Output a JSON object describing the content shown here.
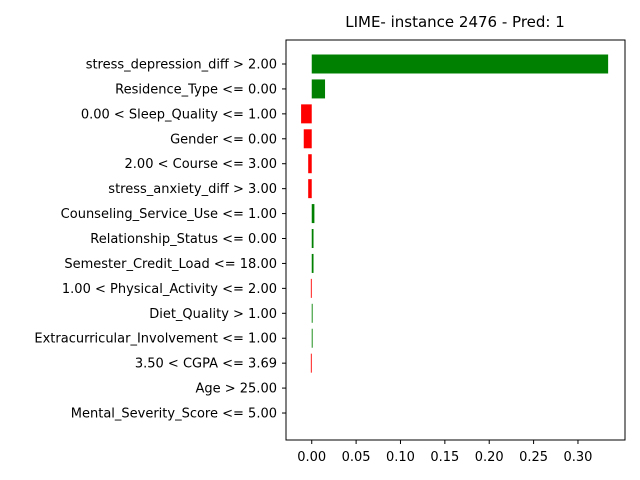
{
  "chart_data": {
    "type": "bar",
    "orientation": "horizontal",
    "title": "LIME- instance 2476 - Pred: 1",
    "xlabel": "",
    "ylabel": "",
    "xlim": [
      -0.029,
      0.353
    ],
    "xticks": [
      0.0,
      0.05,
      0.1,
      0.15,
      0.2,
      0.25,
      0.3
    ],
    "xtick_labels": [
      "0.00",
      "0.05",
      "0.10",
      "0.15",
      "0.20",
      "0.25",
      "0.30"
    ],
    "grid": false,
    "legend": "none",
    "positive_color": "#008000",
    "negative_color": "#ff0000",
    "categories": [
      "stress_depression_diff > 2.00",
      "Residence_Type <= 0.00",
      "0.00 < Sleep_Quality <= 1.00",
      "Gender <= 0.00",
      "2.00 < Course <= 3.00",
      "stress_anxiety_diff > 3.00",
      "Counseling_Service_Use <= 1.00",
      "Relationship_Status <= 0.00",
      "Semester_Credit_Load <= 18.00",
      "1.00 < Physical_Activity <= 2.00",
      "Diet_Quality > 1.00",
      "Extracurricular_Involvement <= 1.00",
      "3.50 < CGPA <= 3.69",
      "Age > 25.00",
      "Mental_Severity_Score <= 5.00"
    ],
    "values": [
      0.334,
      0.015,
      -0.012,
      -0.009,
      -0.004,
      -0.004,
      0.003,
      0.002,
      0.002,
      -0.001,
      0.001,
      0.001,
      -0.001,
      0.0,
      0.0
    ]
  }
}
